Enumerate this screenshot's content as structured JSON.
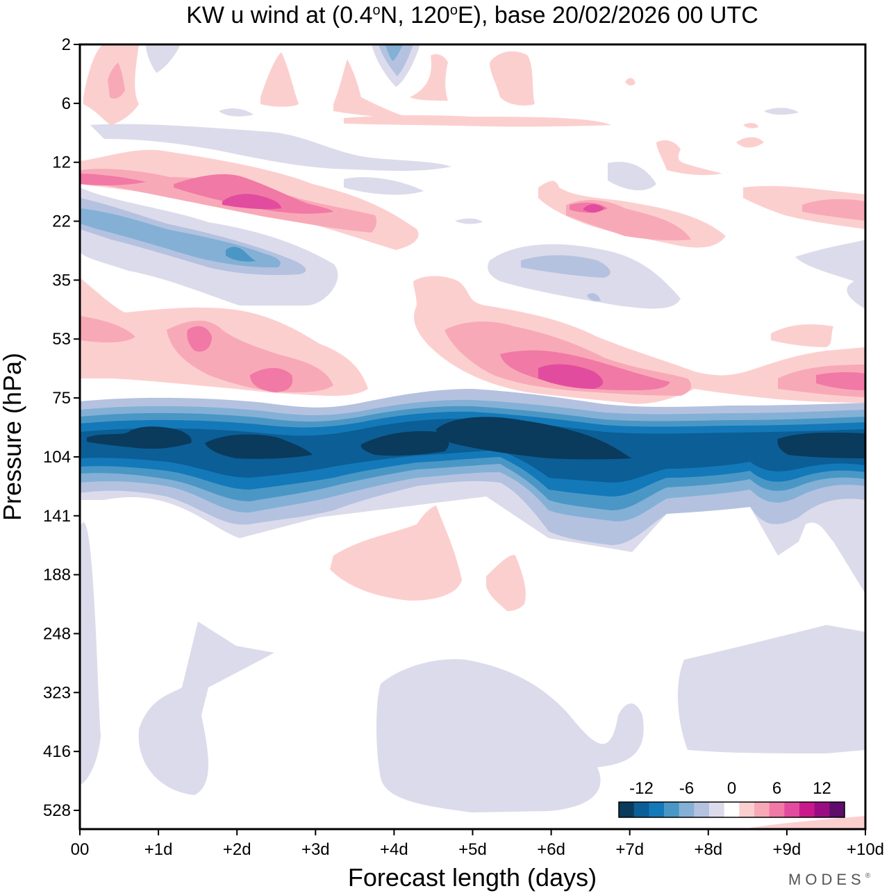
{
  "chart_data": {
    "type": "heatmap",
    "title_parts": {
      "prefix": "KW u wind at (0.4",
      "deg1": "o",
      "mid": "N, 120",
      "deg2": "o",
      "suffix": "E),  base 20/02/2026  00 UTC"
    },
    "xlabel": "Forecast length (days)",
    "ylabel": "Pressure (hPa)",
    "x_ticks": [
      "00",
      "+1d",
      "+2d",
      "+3d",
      "+4d",
      "+5d",
      "+6d",
      "+7d",
      "+8d",
      "+9d",
      "+10d"
    ],
    "y_ticks": [
      "2",
      "6",
      "12",
      "22",
      "35",
      "53",
      "75",
      "104",
      "141",
      "188",
      "248",
      "323",
      "416",
      "528"
    ],
    "xlim_days": [
      0,
      10
    ],
    "colorbar": {
      "levels": [
        -14,
        -12,
        -10,
        -8,
        -6,
        -4,
        -2,
        0,
        2,
        4,
        6,
        8,
        10,
        12,
        14
      ],
      "labels": [
        "-12",
        "-6",
        "0",
        "6",
        "12"
      ],
      "label_levels": [
        -12,
        -6,
        0,
        6,
        12
      ],
      "colors": [
        "#0a3a5c",
        "#0b5e96",
        "#1479b8",
        "#4a97c6",
        "#84b0d6",
        "#b4c2e0",
        "#dcdbeb",
        "#ffffff",
        "#fccfcf",
        "#f8a9b7",
        "#f179a6",
        "#e24c9e",
        "#c9188c",
        "#9a0d82",
        "#5e0d6a"
      ]
    },
    "features": [
      {
        "name": "tropopause-easterly-jet",
        "level": -12,
        "center_day": 5.5,
        "center_level_idx": 7.6,
        "peak_u": -15
      },
      {
        "name": "westerly-53-75hPa-early",
        "level": 8,
        "center_day": 1.5,
        "center_level_idx": 5.0,
        "peak_u": 9
      },
      {
        "name": "westerly-53-75hPa-late",
        "level": 8,
        "center_day": 6.3,
        "center_level_idx": 5.6,
        "peak_u": 10
      },
      {
        "name": "westerly-12-22hPa",
        "level": 8,
        "center_day": 2.3,
        "center_level_idx": 2.6,
        "peak_u": 10
      },
      {
        "name": "easterly-22-35hPa",
        "level": -8,
        "center_day": 2.0,
        "center_level_idx": 3.5,
        "peak_u": -8
      },
      {
        "name": "westerly-141-188hPa",
        "level": 2,
        "center_day": 4.7,
        "center_level_idx": 8.9,
        "peak_u": 3
      },
      {
        "name": "easterly-323-416hPa",
        "level": -4,
        "center_day": 9.0,
        "center_level_idx": 11.5,
        "peak_u": -4
      }
    ]
  },
  "branding": {
    "logo_text": "MODES",
    "mark": "®"
  }
}
